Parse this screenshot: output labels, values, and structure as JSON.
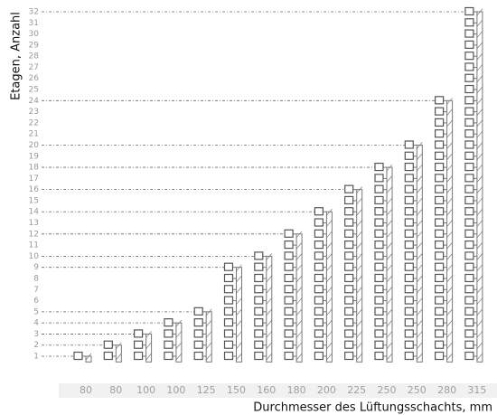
{
  "chart_data": {
    "type": "bar",
    "y_label": "Etagen, Anzahl",
    "x_label": "Durchmesser des Lüftungsschachts, mm",
    "categories": [
      "80",
      "80",
      "100",
      "100",
      "125",
      "150",
      "160",
      "180",
      "200",
      "225",
      "250",
      "250",
      "280",
      "315"
    ],
    "values": [
      1,
      2,
      3,
      4,
      5,
      9,
      10,
      12,
      14,
      16,
      18,
      20,
      24,
      32
    ],
    "color": "#777777",
    "ylim": [
      0,
      33
    ],
    "yticks": [
      1,
      2,
      3,
      4,
      5,
      6,
      7,
      8,
      9,
      10,
      11,
      12,
      13,
      14,
      15,
      16,
      17,
      18,
      19,
      20,
      21,
      22,
      23,
      24,
      25,
      26,
      27,
      28,
      29,
      30,
      31,
      32
    ]
  }
}
